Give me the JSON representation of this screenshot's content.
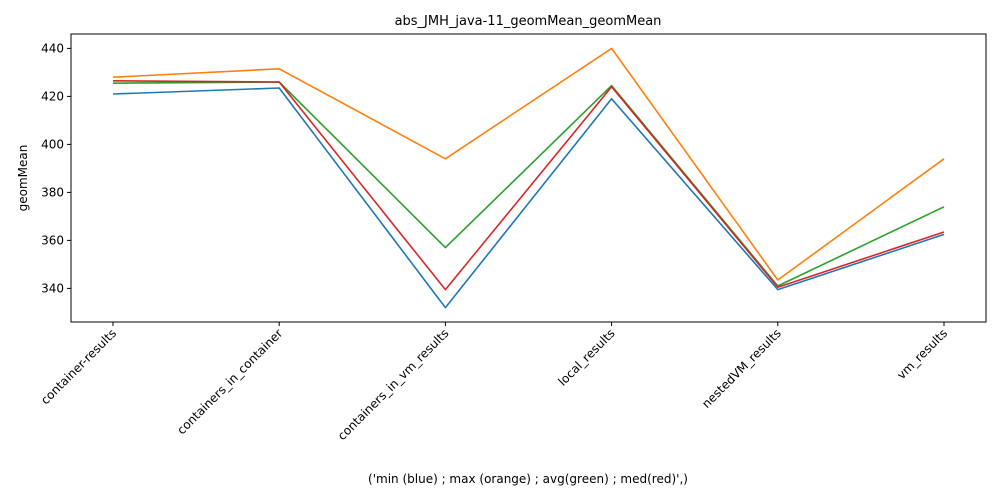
{
  "chart_data": {
    "type": "line",
    "title": "abs_JMH_java-11_geomMean_geomMean",
    "xlabel": "('min (blue) ; max (orange) ; avg(green) ; med(red)',)",
    "ylabel": "geomMean",
    "categories": [
      "container-results",
      "containers_in_container",
      "containers_in_vm_results",
      "local_results",
      "nestedVM_results",
      "vm_results"
    ],
    "ylim": [
      326,
      446
    ],
    "yticks": [
      340,
      360,
      380,
      400,
      420,
      440
    ],
    "grid": false,
    "series": [
      {
        "color": "#1f77b4",
        "values": [
          421,
          423.5,
          332,
          419,
          339.5,
          362.5
        ]
      },
      {
        "color": "#ff7f0e",
        "values": [
          428,
          431.5,
          394,
          440,
          343.5,
          394
        ]
      },
      {
        "color": "#2ca02c",
        "values": [
          425.5,
          426,
          357,
          424.5,
          341,
          374
        ]
      },
      {
        "color": "#d62728",
        "values": [
          426.5,
          426,
          339.5,
          424,
          340.5,
          363.5
        ]
      }
    ]
  }
}
